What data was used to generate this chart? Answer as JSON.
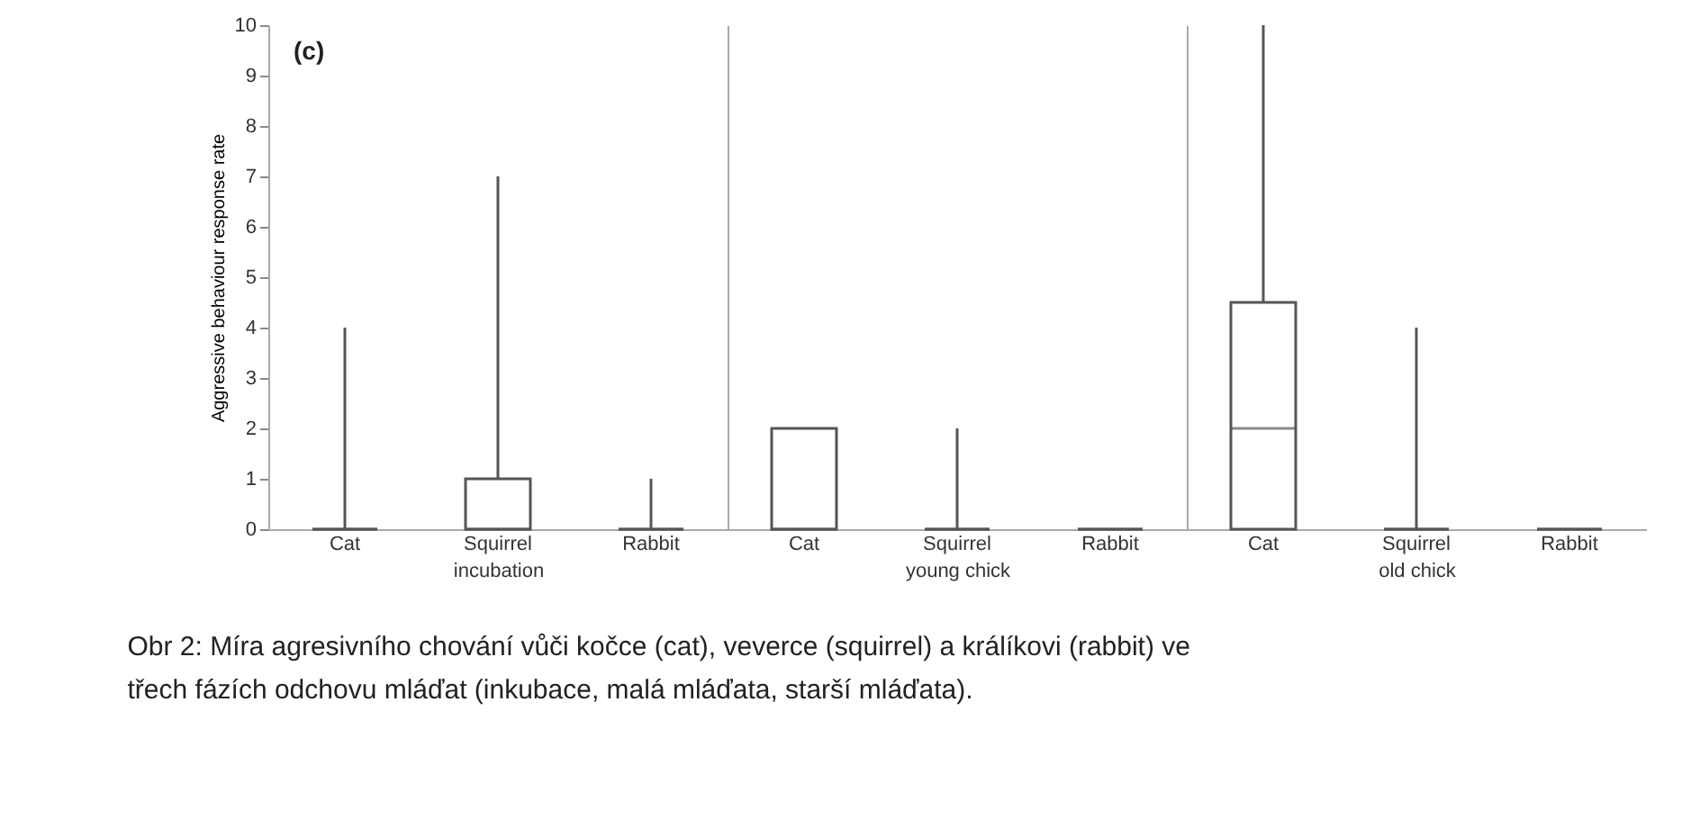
{
  "chart_data": [
    {
      "type": "box",
      "categories": [
        "Cat",
        "Squirrel",
        "Rabbit"
      ],
      "xlabel": "incubation",
      "ylabel": "Aggressive behaviour response rate",
      "ylim": [
        0,
        10
      ],
      "yticks": [
        0,
        1,
        2,
        3,
        4,
        5,
        6,
        7,
        8,
        9,
        10
      ],
      "grid": false,
      "color": "#555555",
      "boxes": [
        {
          "low": 0,
          "q1": 0,
          "median": 0,
          "q3": 0,
          "high": 4
        },
        {
          "low": 0,
          "q1": 0,
          "median": 0,
          "q3": 1,
          "high": 7
        },
        {
          "low": 0,
          "q1": 0,
          "median": 0,
          "q3": 0,
          "high": 1
        }
      ],
      "annotations": [
        "(c)",
        "Obr 2: Míra agresivního chování vůči kočce (cat), veverce (squirrel) a králíkovi (rabbit) ve třech fázích odchovu mláďat (inkubace, malá mláďata, starší mláďata)."
      ]
    },
    {
      "type": "box",
      "categories": [
        "Cat",
        "Squirrel",
        "Rabbit"
      ],
      "xlabel": "young chick",
      "ylim": [
        0,
        10
      ],
      "tick_labels": "x",
      "grid": false,
      "color": "#555555",
      "boxes": [
        {
          "low": 0,
          "q1": 0,
          "median": 0,
          "q3": 2,
          "high": 2
        },
        {
          "low": 0,
          "q1": 0,
          "median": 0,
          "q3": 0,
          "high": 2
        },
        {
          "low": 0,
          "q1": 0,
          "median": 0,
          "q3": 0,
          "high": 0
        }
      ]
    },
    {
      "type": "box",
      "categories": [
        "Cat",
        "Squirrel",
        "Rabbit"
      ],
      "xlabel": "old chick",
      "ylim": [
        0,
        10
      ],
      "tick_labels": "x",
      "grid": false,
      "color": "#555555",
      "boxes": [
        {
          "low": 0,
          "q1": 0,
          "median": 2,
          "q3": 4.5,
          "high": 10
        },
        {
          "low": 0,
          "q1": 0,
          "median": 0,
          "q3": 0,
          "high": 4
        },
        {
          "low": 0,
          "q1": 0,
          "median": 0,
          "q3": 0,
          "high": 0
        }
      ]
    }
  ]
}
